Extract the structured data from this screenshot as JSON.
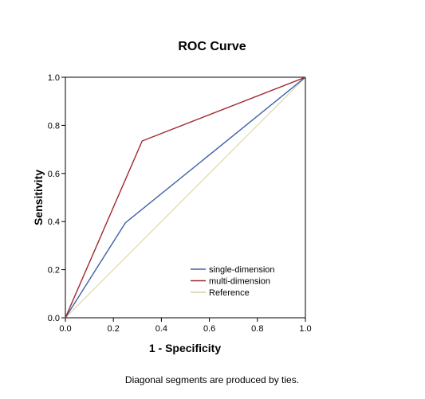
{
  "chart_data": {
    "type": "line",
    "title": "ROC Curve",
    "xlabel": "1 - Specificity",
    "ylabel": "Sensitivity",
    "xlim": [
      0.0,
      1.0
    ],
    "ylim": [
      0.0,
      1.0
    ],
    "xticks": [
      "0.0",
      "0.2",
      "0.4",
      "0.6",
      "0.8",
      "1.0"
    ],
    "yticks": [
      "0.0",
      "0.2",
      "0.4",
      "0.6",
      "0.8",
      "1.0"
    ],
    "grid": false,
    "legend_position": "bottom-right",
    "series": [
      {
        "name": "single-dimension",
        "color": "#4060a8",
        "x": [
          0.0,
          0.25,
          1.0
        ],
        "y": [
          0.0,
          0.395,
          1.0
        ]
      },
      {
        "name": "multi-dimension",
        "color": "#a0282c",
        "x": [
          0.0,
          0.32,
          1.0
        ],
        "y": [
          0.0,
          0.735,
          1.0
        ]
      },
      {
        "name": "Reference",
        "color": "#d6cfa0",
        "x": [
          0.0,
          1.0
        ],
        "y": [
          0.0,
          1.0
        ]
      }
    ],
    "footnote": "Diagonal segments are produced by ties."
  }
}
